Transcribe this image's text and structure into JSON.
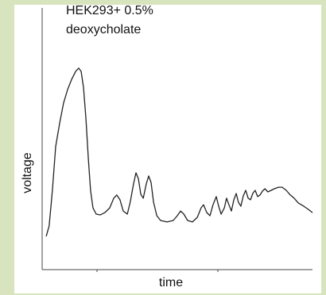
{
  "chart_data": {
    "type": "line",
    "title": [
      "HEK293+ 0.5%",
      "deoxycholate"
    ],
    "x_label": "time",
    "y_label": "voltage",
    "color": "#222222",
    "xlim": [
      0,
      100
    ],
    "ylim": [
      0,
      100
    ],
    "x": [
      1.5,
      2.6,
      3.8,
      5.0,
      6.5,
      7.9,
      9.4,
      10.9,
      12.4,
      13.5,
      14.4,
      15.3,
      16.2,
      17.1,
      17.9,
      18.8,
      20.0,
      21.5,
      23.2,
      25.0,
      26.5,
      27.6,
      28.8,
      30.0,
      31.5,
      32.6,
      33.8,
      34.7,
      35.6,
      36.5,
      37.4,
      38.5,
      39.4,
      40.3,
      41.2,
      42.4,
      43.8,
      46.2,
      48.5,
      50.0,
      51.2,
      52.4,
      53.8,
      55.6,
      57.4,
      58.8,
      59.7,
      60.9,
      62.1,
      63.2,
      64.4,
      65.3,
      66.2,
      67.4,
      68.2,
      69.1,
      70.0,
      70.9,
      71.8,
      72.6,
      73.5,
      74.4,
      75.3,
      76.2,
      77.1,
      77.9,
      78.8,
      79.7,
      80.6,
      81.5,
      82.4,
      83.5,
      84.7,
      85.9,
      87.4,
      88.8,
      90.3,
      91.8,
      93.2,
      94.7,
      96.8,
      98.5,
      100
    ],
    "values": [
      12.7,
      16.7,
      30.3,
      47.0,
      56.1,
      63.6,
      68.8,
      72.7,
      75.8,
      77.0,
      75.8,
      69.7,
      57.6,
      42.4,
      30.3,
      23.6,
      21.2,
      20.9,
      21.8,
      23.6,
      27.3,
      28.5,
      26.7,
      22.4,
      21.2,
      25.8,
      32.7,
      37.0,
      34.8,
      28.8,
      27.3,
      32.7,
      35.8,
      33.3,
      25.8,
      20.6,
      18.8,
      18.2,
      18.8,
      20.6,
      22.4,
      21.2,
      18.8,
      18.2,
      20.0,
      23.6,
      24.8,
      21.8,
      20.6,
      24.8,
      27.9,
      24.2,
      21.2,
      23.6,
      27.3,
      24.8,
      22.4,
      26.7,
      29.1,
      25.8,
      24.2,
      28.2,
      30.3,
      27.3,
      26.7,
      29.1,
      30.3,
      27.9,
      28.5,
      30.0,
      30.9,
      29.7,
      30.3,
      30.9,
      31.5,
      31.5,
      30.3,
      28.5,
      27.3,
      25.5,
      24.2,
      23.0,
      21.8
    ]
  }
}
